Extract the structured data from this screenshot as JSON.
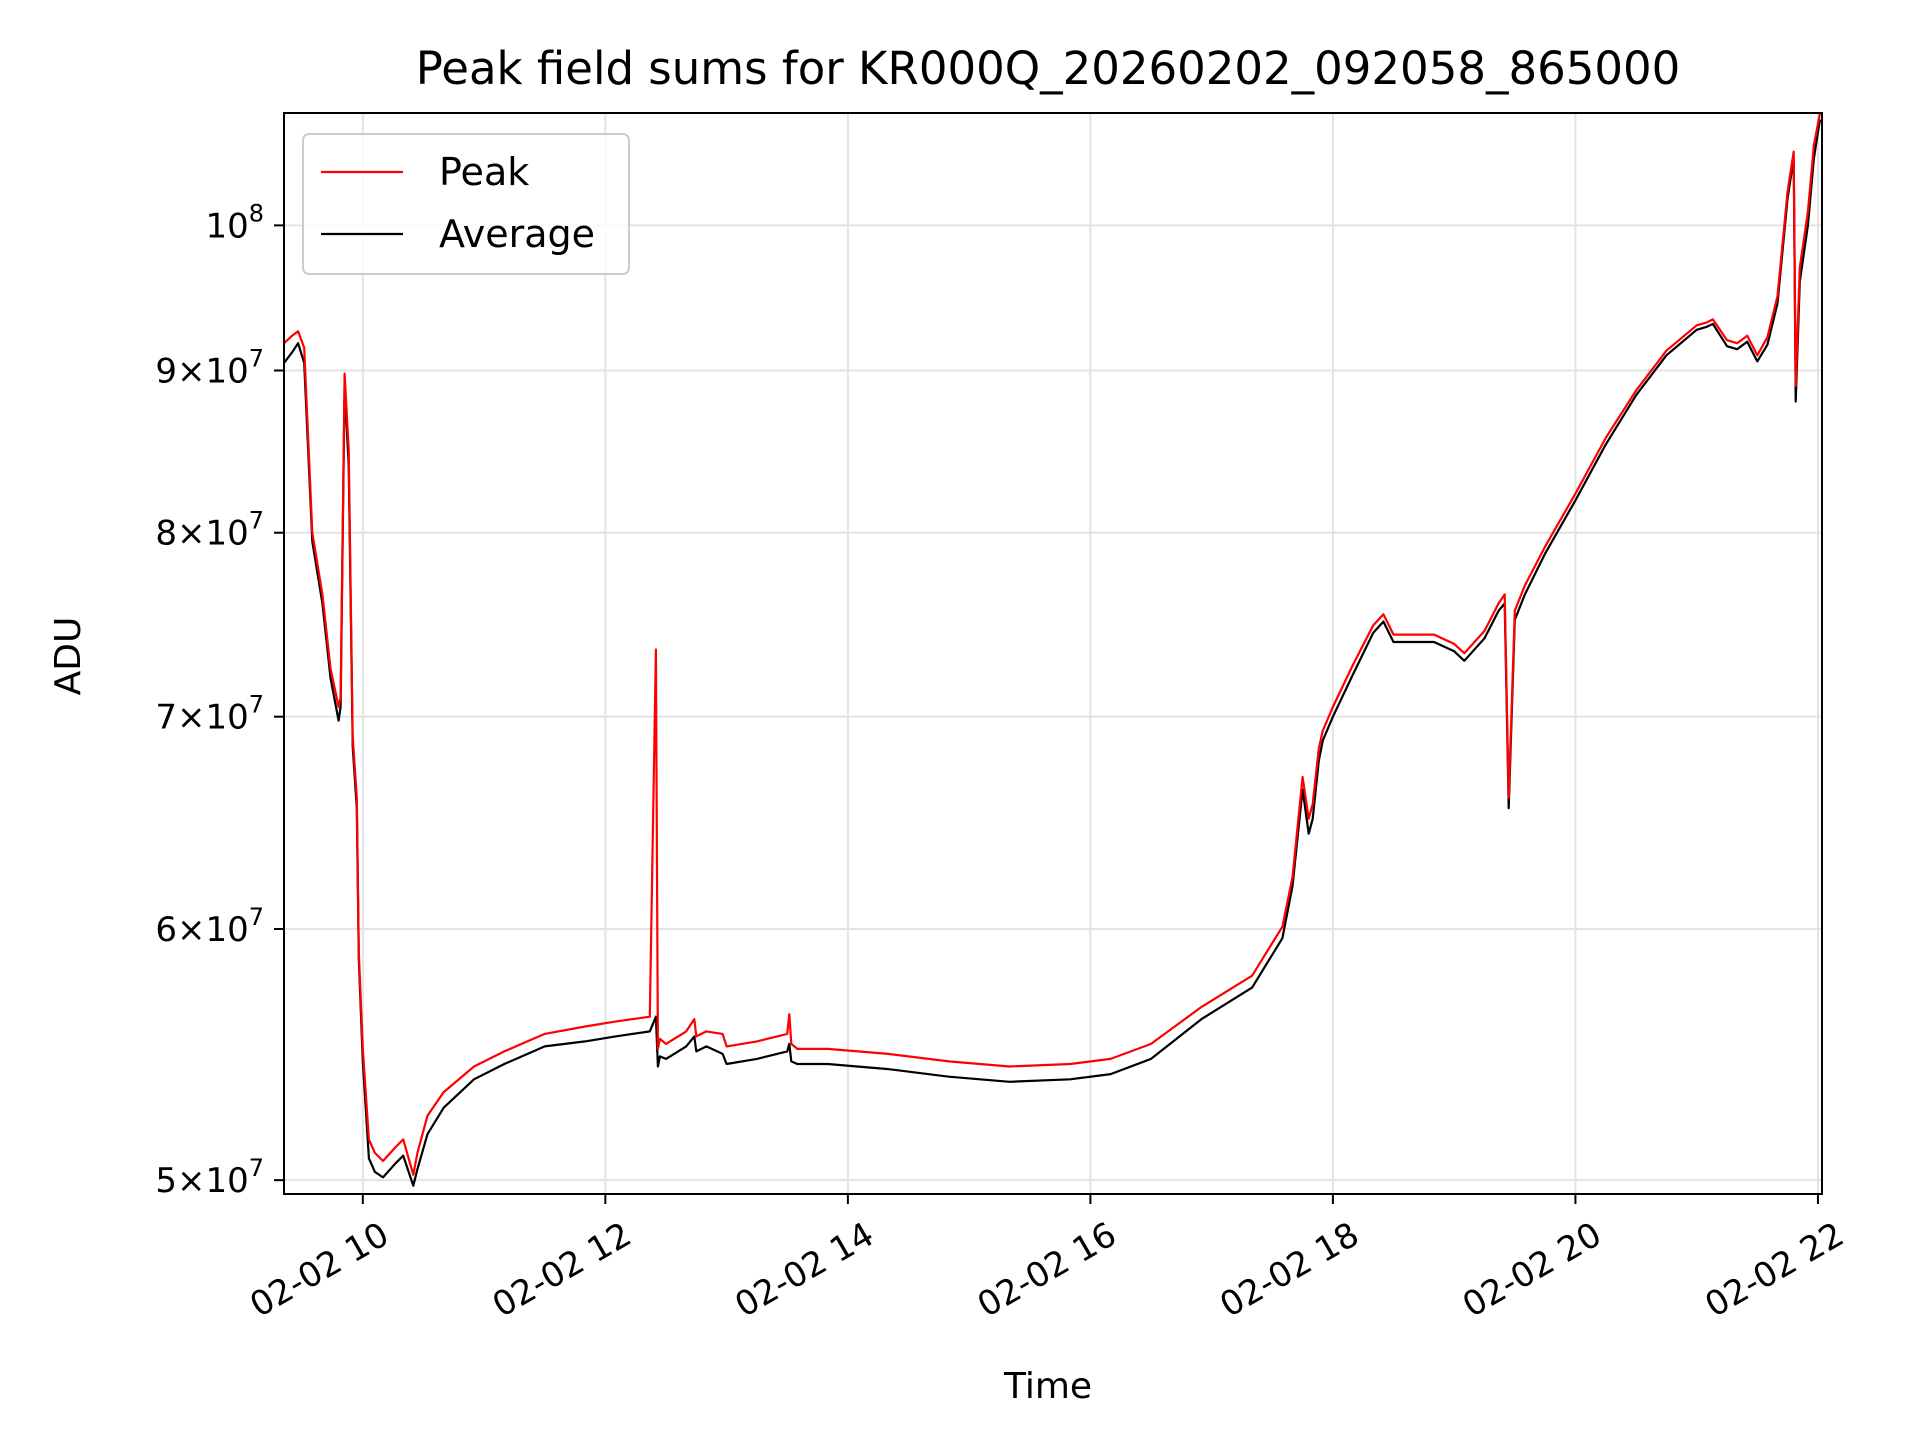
{
  "chart_data": {
    "type": "line",
    "title": "Peak field sums for KR000Q_20260202_092058_865000",
    "xlabel": "Time",
    "ylabel": "ADU",
    "x_scale": "time",
    "y_scale": "log",
    "xlim": [
      "2026-02-02 09:21",
      "2026-02-02 22:02"
    ],
    "ylim": [
      49500000,
      108500000
    ],
    "grid": true,
    "legend_position": "upper left",
    "x_ticks": [
      {
        "value": "2026-02-02 10:00",
        "label": "02-02 10"
      },
      {
        "value": "2026-02-02 12:00",
        "label": "02-02 12"
      },
      {
        "value": "2026-02-02 14:00",
        "label": "02-02 14"
      },
      {
        "value": "2026-02-02 16:00",
        "label": "02-02 16"
      },
      {
        "value": "2026-02-02 18:00",
        "label": "02-02 18"
      },
      {
        "value": "2026-02-02 20:00",
        "label": "02-02 20"
      },
      {
        "value": "2026-02-02 22:00",
        "label": "02-02 22"
      }
    ],
    "y_ticks": [
      {
        "value": 50000000,
        "mant": "5",
        "exp": "7"
      },
      {
        "value": 60000000,
        "mant": "6",
        "exp": "7"
      },
      {
        "value": 70000000,
        "mant": "7",
        "exp": "7"
      },
      {
        "value": 80000000,
        "mant": "8",
        "exp": "7"
      },
      {
        "value": 90000000,
        "mant": "9",
        "exp": "7"
      },
      {
        "value": 100000000,
        "mant": "",
        "exp": "8"
      }
    ],
    "series": [
      {
        "name": "Peak",
        "color": "#ff0000",
        "x": [
          "2026-02-02 09:21",
          "2026-02-02 09:25",
          "2026-02-02 09:28",
          "2026-02-02 09:31",
          "2026-02-02 09:35",
          "2026-02-02 09:40",
          "2026-02-02 09:44",
          "2026-02-02 09:48",
          "2026-02-02 09:49",
          "2026-02-02 09:51",
          "2026-02-02 09:53",
          "2026-02-02 09:55",
          "2026-02-02 09:57",
          "2026-02-02 09:58",
          "2026-02-02 10:00",
          "2026-02-02 10:03",
          "2026-02-02 10:06",
          "2026-02-02 10:10",
          "2026-02-02 10:16",
          "2026-02-02 10:20",
          "2026-02-02 10:25",
          "2026-02-02 10:27",
          "2026-02-02 10:32",
          "2026-02-02 10:40",
          "2026-02-02 10:55",
          "2026-02-02 11:10",
          "2026-02-02 11:30",
          "2026-02-02 11:50",
          "2026-02-02 12:05",
          "2026-02-02 12:22",
          "2026-02-02 12:25",
          "2026-02-02 12:26",
          "2026-02-02 12:27",
          "2026-02-02 12:30",
          "2026-02-02 12:40",
          "2026-02-02 12:44",
          "2026-02-02 12:45",
          "2026-02-02 12:50",
          "2026-02-02 12:58",
          "2026-02-02 13:00",
          "2026-02-02 13:15",
          "2026-02-02 13:30",
          "2026-02-02 13:31",
          "2026-02-02 13:32",
          "2026-02-02 13:35",
          "2026-02-02 13:50",
          "2026-02-02 14:20",
          "2026-02-02 14:50",
          "2026-02-02 15:20",
          "2026-02-02 15:50",
          "2026-02-02 16:10",
          "2026-02-02 16:30",
          "2026-02-02 16:55",
          "2026-02-02 17:20",
          "2026-02-02 17:35",
          "2026-02-02 17:40",
          "2026-02-02 17:45",
          "2026-02-02 17:48",
          "2026-02-02 17:50",
          "2026-02-02 17:53",
          "2026-02-02 17:55",
          "2026-02-02 18:00",
          "2026-02-02 18:10",
          "2026-02-02 18:20",
          "2026-02-02 18:25",
          "2026-02-02 18:30",
          "2026-02-02 18:50",
          "2026-02-02 19:00",
          "2026-02-02 19:05",
          "2026-02-02 19:15",
          "2026-02-02 19:22",
          "2026-02-02 19:25",
          "2026-02-02 19:27",
          "2026-02-02 19:30",
          "2026-02-02 19:35",
          "2026-02-02 19:45",
          "2026-02-02 20:00",
          "2026-02-02 20:15",
          "2026-02-02 20:30",
          "2026-02-02 20:45",
          "2026-02-02 21:00",
          "2026-02-02 21:05",
          "2026-02-02 21:08",
          "2026-02-02 21:15",
          "2026-02-02 21:20",
          "2026-02-02 21:25",
          "2026-02-02 21:30",
          "2026-02-02 21:35",
          "2026-02-02 21:40",
          "2026-02-02 21:45",
          "2026-02-02 21:48",
          "2026-02-02 21:49",
          "2026-02-02 21:51",
          "2026-02-02 21:55",
          "2026-02-02 21:58",
          "2026-02-02 22:01"
        ],
        "values": [
          91800000,
          92300000,
          92600000,
          91500000,
          80000000,
          76500000,
          72500000,
          70500000,
          71000000,
          89800000,
          85000000,
          69000000,
          66000000,
          59000000,
          55000000,
          51500000,
          51000000,
          50700000,
          51200000,
          51500000,
          50200000,
          51000000,
          52400000,
          53300000,
          54300000,
          54900000,
          55600000,
          55900000,
          56100000,
          56300000,
          73500000,
          55000000,
          55400000,
          55200000,
          55700000,
          56200000,
          55500000,
          55700000,
          55600000,
          55100000,
          55300000,
          55600000,
          56400000,
          55200000,
          55000000,
          55000000,
          54800000,
          54500000,
          54300000,
          54400000,
          54600000,
          55200000,
          56700000,
          58000000,
          60100000,
          62300000,
          67000000,
          65000000,
          65700000,
          68400000,
          69300000,
          70500000,
          72700000,
          74800000,
          75400000,
          74300000,
          74300000,
          73800000,
          73300000,
          74500000,
          76000000,
          76500000,
          66000000,
          75600000,
          77000000,
          79200000,
          82300000,
          85700000,
          88700000,
          91300000,
          93000000,
          93200000,
          93400000,
          92000000,
          91800000,
          92300000,
          91000000,
          92200000,
          95000000,
          102500000,
          105500000,
          89000000,
          97000000,
          101000000,
          106000000,
          108500000
        ]
      },
      {
        "name": "Average",
        "color": "#000000",
        "x": [
          "2026-02-02 09:21",
          "2026-02-02 09:25",
          "2026-02-02 09:28",
          "2026-02-02 09:31",
          "2026-02-02 09:35",
          "2026-02-02 09:40",
          "2026-02-02 09:44",
          "2026-02-02 09:48",
          "2026-02-02 09:49",
          "2026-02-02 09:51",
          "2026-02-02 09:53",
          "2026-02-02 09:55",
          "2026-02-02 09:57",
          "2026-02-02 09:58",
          "2026-02-02 10:00",
          "2026-02-02 10:03",
          "2026-02-02 10:06",
          "2026-02-02 10:10",
          "2026-02-02 10:16",
          "2026-02-02 10:20",
          "2026-02-02 10:25",
          "2026-02-02 10:27",
          "2026-02-02 10:32",
          "2026-02-02 10:40",
          "2026-02-02 10:55",
          "2026-02-02 11:10",
          "2026-02-02 11:30",
          "2026-02-02 11:50",
          "2026-02-02 12:05",
          "2026-02-02 12:22",
          "2026-02-02 12:25",
          "2026-02-02 12:26",
          "2026-02-02 12:27",
          "2026-02-02 12:30",
          "2026-02-02 12:40",
          "2026-02-02 12:44",
          "2026-02-02 12:45",
          "2026-02-02 12:50",
          "2026-02-02 12:58",
          "2026-02-02 13:00",
          "2026-02-02 13:15",
          "2026-02-02 13:30",
          "2026-02-02 13:31",
          "2026-02-02 13:32",
          "2026-02-02 13:35",
          "2026-02-02 13:50",
          "2026-02-02 14:20",
          "2026-02-02 14:50",
          "2026-02-02 15:20",
          "2026-02-02 15:50",
          "2026-02-02 16:10",
          "2026-02-02 16:30",
          "2026-02-02 16:55",
          "2026-02-02 17:20",
          "2026-02-02 17:35",
          "2026-02-02 17:40",
          "2026-02-02 17:45",
          "2026-02-02 17:48",
          "2026-02-02 17:50",
          "2026-02-02 17:53",
          "2026-02-02 17:55",
          "2026-02-02 18:00",
          "2026-02-02 18:10",
          "2026-02-02 18:20",
          "2026-02-02 18:25",
          "2026-02-02 18:30",
          "2026-02-02 18:50",
          "2026-02-02 19:00",
          "2026-02-02 19:05",
          "2026-02-02 19:15",
          "2026-02-02 19:22",
          "2026-02-02 19:25",
          "2026-02-02 19:27",
          "2026-02-02 19:30",
          "2026-02-02 19:35",
          "2026-02-02 19:45",
          "2026-02-02 20:00",
          "2026-02-02 20:15",
          "2026-02-02 20:30",
          "2026-02-02 20:45",
          "2026-02-02 21:00",
          "2026-02-02 21:05",
          "2026-02-02 21:08",
          "2026-02-02 21:15",
          "2026-02-02 21:20",
          "2026-02-02 21:25",
          "2026-02-02 21:30",
          "2026-02-02 21:35",
          "2026-02-02 21:40",
          "2026-02-02 21:45",
          "2026-02-02 21:48",
          "2026-02-02 21:49",
          "2026-02-02 21:51",
          "2026-02-02 21:55",
          "2026-02-02 21:58",
          "2026-02-02 22:01"
        ],
        "values": [
          90500000,
          91200000,
          91800000,
          90500000,
          79500000,
          76000000,
          72000000,
          69800000,
          70500000,
          89000000,
          84000000,
          68500000,
          65500000,
          58700000,
          54500000,
          50800000,
          50300000,
          50100000,
          50600000,
          50900000,
          49800000,
          50400000,
          51700000,
          52700000,
          53800000,
          54400000,
          55100000,
          55300000,
          55500000,
          55700000,
          56300000,
          54300000,
          54700000,
          54600000,
          55100000,
          55500000,
          54900000,
          55100000,
          54800000,
          54400000,
          54600000,
          54900000,
          55200000,
          54500000,
          54400000,
          54400000,
          54200000,
          53900000,
          53700000,
          53800000,
          54000000,
          54600000,
          56200000,
          57500000,
          59600000,
          61900000,
          66400000,
          64300000,
          65000000,
          67800000,
          68800000,
          70000000,
          72200000,
          74400000,
          75000000,
          73900000,
          73900000,
          73400000,
          72900000,
          74100000,
          75600000,
          76000000,
          65500000,
          75100000,
          76500000,
          78800000,
          81900000,
          85300000,
          88400000,
          91000000,
          92700000,
          92900000,
          93100000,
          91600000,
          91400000,
          91900000,
          90600000,
          91700000,
          94500000,
          102000000,
          105000000,
          88000000,
          96000000,
          100000000,
          105000000,
          108000000
        ]
      }
    ]
  }
}
